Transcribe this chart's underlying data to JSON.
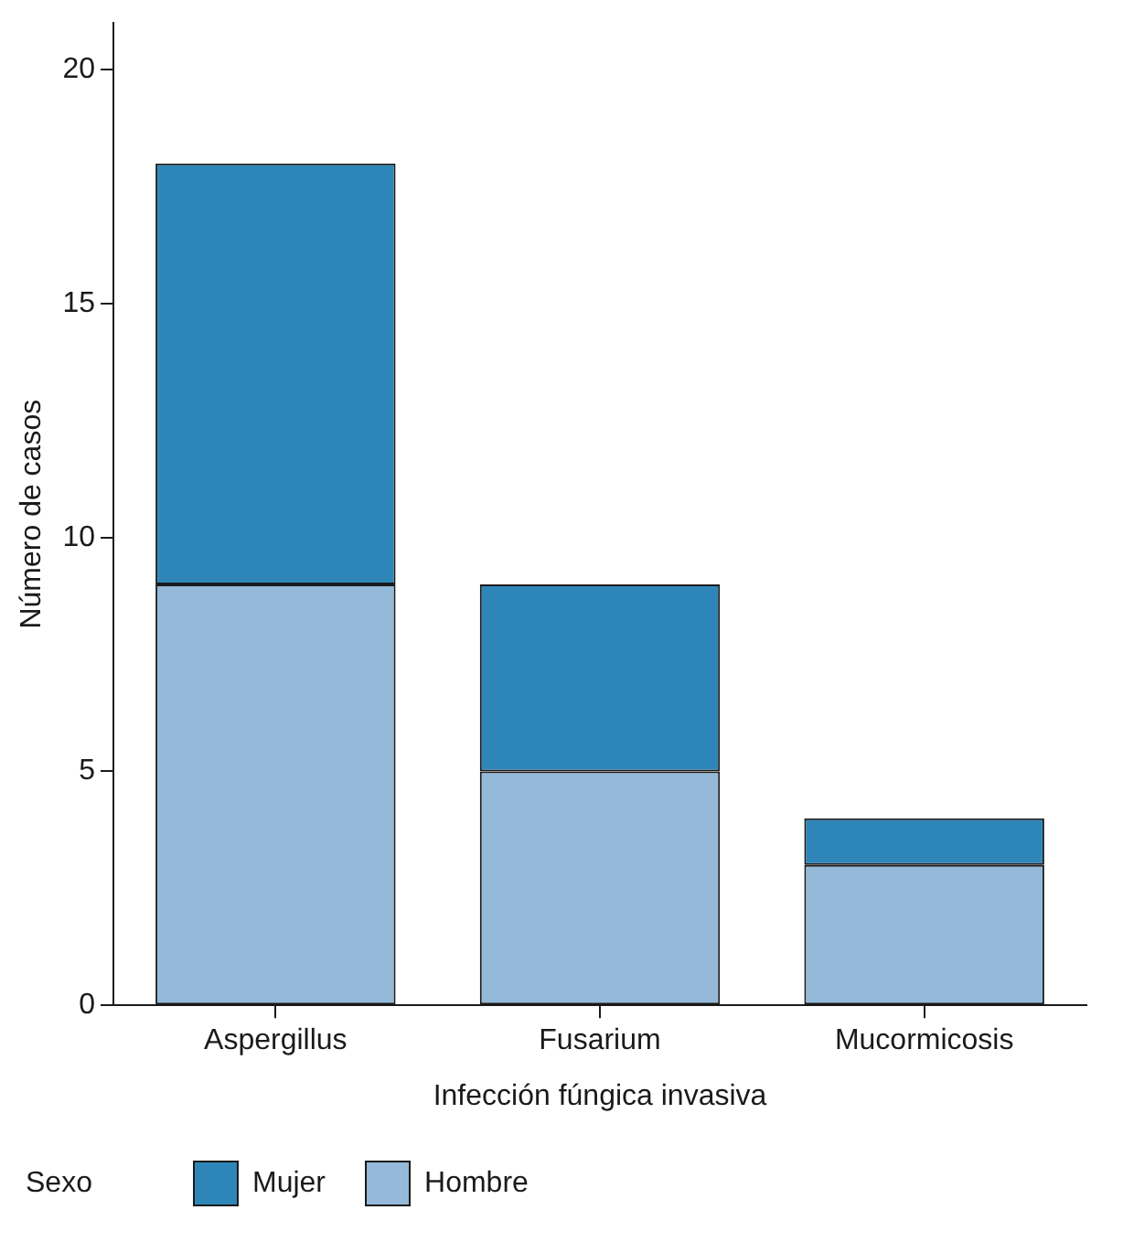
{
  "chart_data": {
    "type": "bar",
    "xlabel": "Infección fúngica invasiva",
    "ylabel": "Número de casos",
    "legend_title": "Sexo",
    "categories": [
      "Aspergillus",
      "Fusarium",
      "Mucormicosis"
    ],
    "series": [
      {
        "name": "Hombre",
        "color": "#94b9d9",
        "values": [
          9,
          5,
          3
        ]
      },
      {
        "name": "Mujer",
        "color": "#2e86b8",
        "values": [
          9,
          4,
          1
        ]
      }
    ],
    "stacked": true,
    "ylim": [
      0,
      21
    ],
    "yticks": [
      0,
      5,
      10,
      15,
      20
    ],
    "grid": false,
    "legend": "bottom left"
  }
}
